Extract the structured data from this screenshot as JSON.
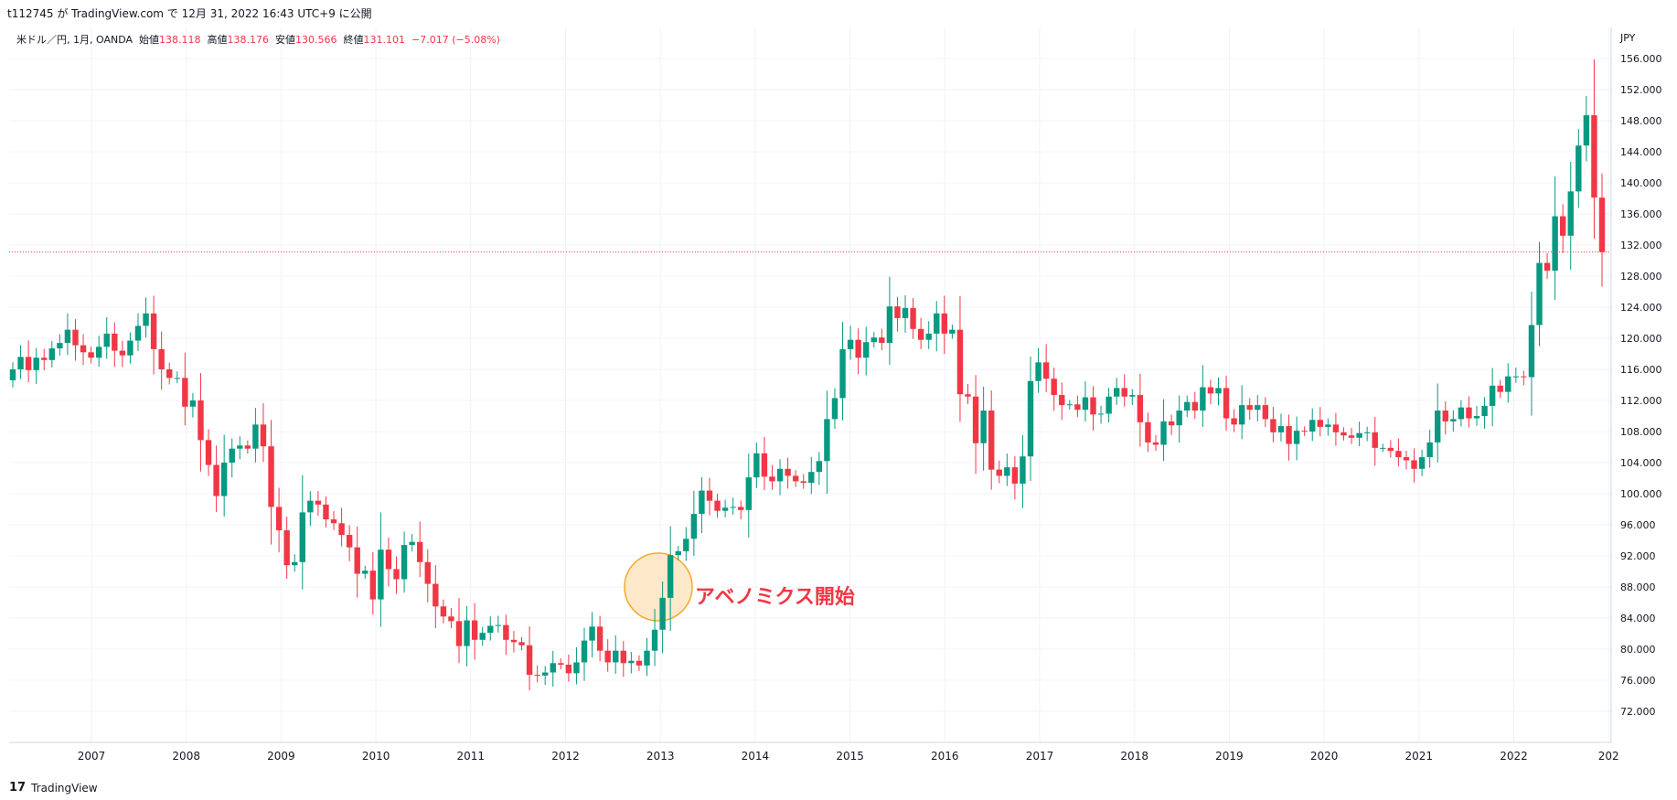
{
  "header": {
    "published": "t112745 が TradingView.com で 12月 31, 2022 16:43 UTC+9 に公開"
  },
  "legend": {
    "symbol": "米ドル／円, 1月, OANDA",
    "open_label": "始値",
    "open": "138.118",
    "high_label": "高値",
    "high": "138.176",
    "low_label": "安値",
    "low": "130.566",
    "close_label": "終値",
    "close": "131.101",
    "change": "−7.017 (−5.08%)"
  },
  "annotation": "アベノミクス開始",
  "footer": {
    "brand": "TradingView"
  },
  "colors": {
    "up": "#089981",
    "down": "#f23645",
    "highlight_fill": "#fde8c8",
    "highlight_stroke": "#f5a623"
  },
  "chart_data": {
    "type": "candlestick",
    "currency_label": "JPY",
    "ylim": [
      68,
      160
    ],
    "y_ticks": [
      "156.000",
      "152.000",
      "148.000",
      "144.000",
      "140.000",
      "136.000",
      "132.000",
      "128.000",
      "124.000",
      "120.000",
      "116.000",
      "112.000",
      "108.000",
      "104.000",
      "100.000",
      "96.000",
      "92.000",
      "88.000",
      "84.000",
      "80.000",
      "76.000",
      "72.000"
    ],
    "x_ticks": [
      "2007",
      "2008",
      "2009",
      "2010",
      "2011",
      "2012",
      "2013",
      "2014",
      "2015",
      "2016",
      "2017",
      "2018",
      "2019",
      "2020",
      "2021",
      "2022",
      "202"
    ],
    "last_price": 131.101,
    "closes": [
      116.0,
      117.6,
      115.9,
      117.5,
      117.2,
      118.7,
      119.4,
      121.1,
      119.1,
      118.2,
      117.5,
      118.9,
      120.6,
      118.4,
      117.8,
      119.7,
      121.6,
      123.2,
      118.6,
      116.0,
      114.9,
      114.9,
      111.2,
      112.0,
      106.9,
      103.7,
      99.7,
      104.0,
      105.8,
      106.2,
      105.8,
      108.9,
      106.1,
      98.3,
      95.3,
      90.8,
      91.2,
      97.6,
      99.1,
      98.6,
      96.7,
      96.2,
      94.7,
      93.1,
      89.7,
      90.1,
      86.4,
      92.8,
      90.3,
      89.0,
      93.4,
      93.8,
      91.2,
      88.4,
      85.5,
      84.2,
      83.6,
      80.4,
      83.7,
      81.2,
      82.1,
      83.0,
      83.1,
      81.2,
      80.9,
      80.5,
      76.7,
      76.6,
      77.0,
      78.2,
      78.0,
      76.9,
      78.3,
      81.1,
      82.9,
      79.8,
      78.3,
      79.8,
      78.2,
      78.5,
      77.9,
      79.8,
      82.5,
      86.6,
      92.1,
      92.6,
      94.2,
      97.4,
      100.4,
      99.1,
      97.8,
      98.2,
      98.3,
      97.9,
      102.1,
      105.2,
      102.2,
      101.6,
      103.2,
      102.3,
      101.6,
      101.4,
      102.8,
      104.2,
      109.6,
      112.3,
      118.6,
      119.8,
      117.5,
      119.5,
      120.1,
      119.4,
      124.1,
      122.6,
      123.9,
      121.2,
      119.8,
      120.6,
      123.2,
      120.6,
      121.1,
      112.8,
      112.5,
      106.5,
      110.7,
      103.1,
      102.3,
      103.4,
      101.3,
      104.8,
      114.5,
      116.9,
      114.8,
      112.7,
      111.4,
      111.5,
      110.8,
      112.4,
      110.2,
      110.3,
      112.5,
      113.6,
      112.5,
      112.7,
      109.2,
      106.6,
      106.3,
      109.3,
      108.8,
      110.7,
      111.8,
      110.7,
      113.7,
      112.9,
      113.6,
      109.7,
      108.9,
      111.4,
      110.8,
      111.4,
      109.6,
      107.9,
      108.7,
      106.4,
      108.1,
      108.0,
      109.5,
      108.6,
      108.9,
      107.9,
      107.5,
      107.2,
      107.8,
      107.9,
      105.9,
      105.9,
      105.5,
      104.7,
      104.3,
      103.2,
      104.7,
      106.6,
      110.7,
      109.3,
      109.6,
      111.1,
      109.7,
      110.0,
      111.3,
      113.9,
      113.1,
      115.1,
      115.1,
      115.0,
      121.7,
      129.7,
      128.7,
      135.7,
      133.2,
      138.9,
      144.8,
      148.7,
      138.1,
      131.1
    ]
  }
}
